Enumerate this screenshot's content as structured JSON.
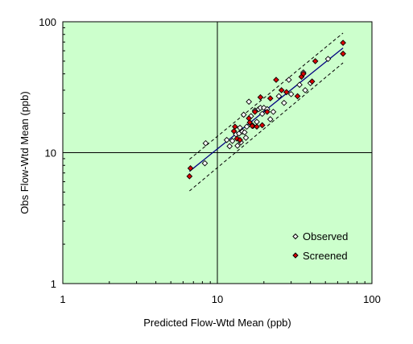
{
  "chart_data": {
    "type": "scatter",
    "title": "",
    "xlabel": "Predicted Flow-Wtd Mean (ppb)",
    "ylabel": "Obs Flow-Wtd Mean (ppb)",
    "xscale": "log",
    "yscale": "log",
    "xlim": [
      1,
      100
    ],
    "ylim": [
      1,
      100
    ],
    "xticks": [
      "1",
      "10",
      "100"
    ],
    "yticks": [
      "1",
      "10",
      "100"
    ],
    "grid": "reference lines at x=10 and y=10",
    "legend_position": "bottom-right",
    "plot_background": "#ccffcc",
    "series": [
      {
        "name": "Observed",
        "marker": "open-diamond",
        "color": "#000000",
        "points": [
          [
            8.3,
            8.3
          ],
          [
            8.4,
            11.8
          ],
          [
            11.5,
            12.5
          ],
          [
            12.0,
            11.2
          ],
          [
            12.5,
            12.3
          ],
          [
            13.2,
            13.8
          ],
          [
            13.5,
            11.3
          ],
          [
            13.8,
            14.0
          ],
          [
            14.0,
            15.5
          ],
          [
            14.2,
            12.0
          ],
          [
            14.5,
            14.5
          ],
          [
            14.8,
            19.5
          ],
          [
            15.0,
            14.3
          ],
          [
            15.3,
            13.0
          ],
          [
            15.5,
            15.8
          ],
          [
            16.0,
            24.5
          ],
          [
            16.5,
            19.0
          ],
          [
            17.0,
            16.0
          ],
          [
            17.5,
            21.0
          ],
          [
            18.0,
            17.2
          ],
          [
            18.5,
            21.5
          ],
          [
            19.0,
            22.0
          ],
          [
            19.5,
            19.8
          ],
          [
            20.0,
            22.0
          ],
          [
            21.0,
            21.5
          ],
          [
            22.0,
            18.0
          ],
          [
            23.0,
            20.5
          ],
          [
            25.0,
            27.0
          ],
          [
            27.0,
            24.0
          ],
          [
            29.0,
            36.0
          ],
          [
            30.0,
            28.0
          ],
          [
            34.0,
            33.0
          ],
          [
            36.0,
            41.0
          ],
          [
            37.0,
            30.0
          ],
          [
            40.0,
            34.0
          ],
          [
            52.0,
            52.0
          ]
        ]
      },
      {
        "name": "Screened",
        "marker": "filled-diamond",
        "color": "#dd0000",
        "points": [
          [
            6.6,
            6.6
          ],
          [
            6.7,
            7.6
          ],
          [
            12.8,
            14.6
          ],
          [
            13.0,
            15.8
          ],
          [
            13.4,
            12.8
          ],
          [
            14.0,
            12.5
          ],
          [
            16.0,
            18.3
          ],
          [
            16.2,
            17.0
          ],
          [
            16.8,
            16.0
          ],
          [
            17.5,
            20.5
          ],
          [
            18.0,
            15.8
          ],
          [
            19.0,
            26.5
          ],
          [
            19.5,
            16.2
          ],
          [
            21.0,
            20.5
          ],
          [
            22.0,
            26.0
          ],
          [
            24.0,
            36.0
          ],
          [
            26.0,
            30.0
          ],
          [
            28.0,
            29.0
          ],
          [
            33.0,
            27.0
          ],
          [
            35.0,
            38.0
          ],
          [
            36.0,
            40.0
          ],
          [
            41.0,
            35.0
          ],
          [
            43.0,
            50.0
          ],
          [
            65.0,
            69.0
          ],
          [
            65.0,
            57.0
          ]
        ]
      }
    ],
    "fit_line": {
      "color": "#000080",
      "style": "solid",
      "points": [
        [
          6.6,
          7.2
        ],
        [
          65.0,
          63.0
        ]
      ]
    },
    "confidence_band": {
      "color": "#000000",
      "style": "dashed",
      "upper": [
        [
          6.6,
          8.9
        ],
        [
          65.0,
          82.0
        ]
      ],
      "lower": [
        [
          6.6,
          5.1
        ],
        [
          65.0,
          48.5
        ]
      ]
    }
  }
}
